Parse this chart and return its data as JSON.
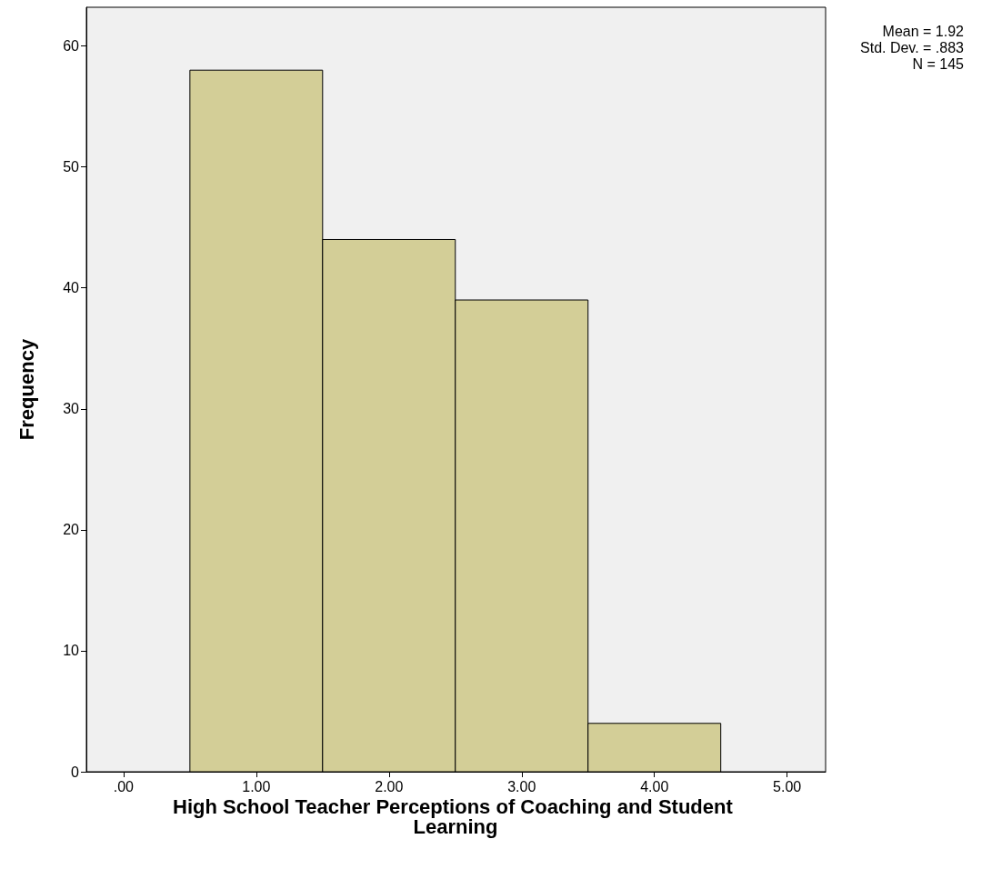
{
  "chart_data": {
    "type": "histogram",
    "xlabel": "High School Teacher Perceptions of Coaching and Student Learning",
    "ylabel": "Frequency",
    "bins": [
      0.5,
      1.5,
      2.5,
      3.5,
      4.5
    ],
    "values": [
      58,
      44,
      39,
      4
    ],
    "color": "#d3ce97",
    "xlim": [
      -0.28,
      5.29
    ],
    "xticks": [
      {
        "value": 0,
        "label": ".00"
      },
      {
        "value": 1,
        "label": "1.00"
      },
      {
        "value": 2,
        "label": "2.00"
      },
      {
        "value": 3,
        "label": "3.00"
      },
      {
        "value": 4,
        "label": "4.00"
      },
      {
        "value": 5,
        "label": "5.00"
      }
    ],
    "ylim": [
      0,
      63.2
    ],
    "yticks": [
      0,
      10,
      20,
      30,
      40,
      50,
      60
    ],
    "grid": false,
    "annotations": [
      "Mean = 1.92",
      "Std. Dev. = .883",
      "N = 145"
    ]
  }
}
